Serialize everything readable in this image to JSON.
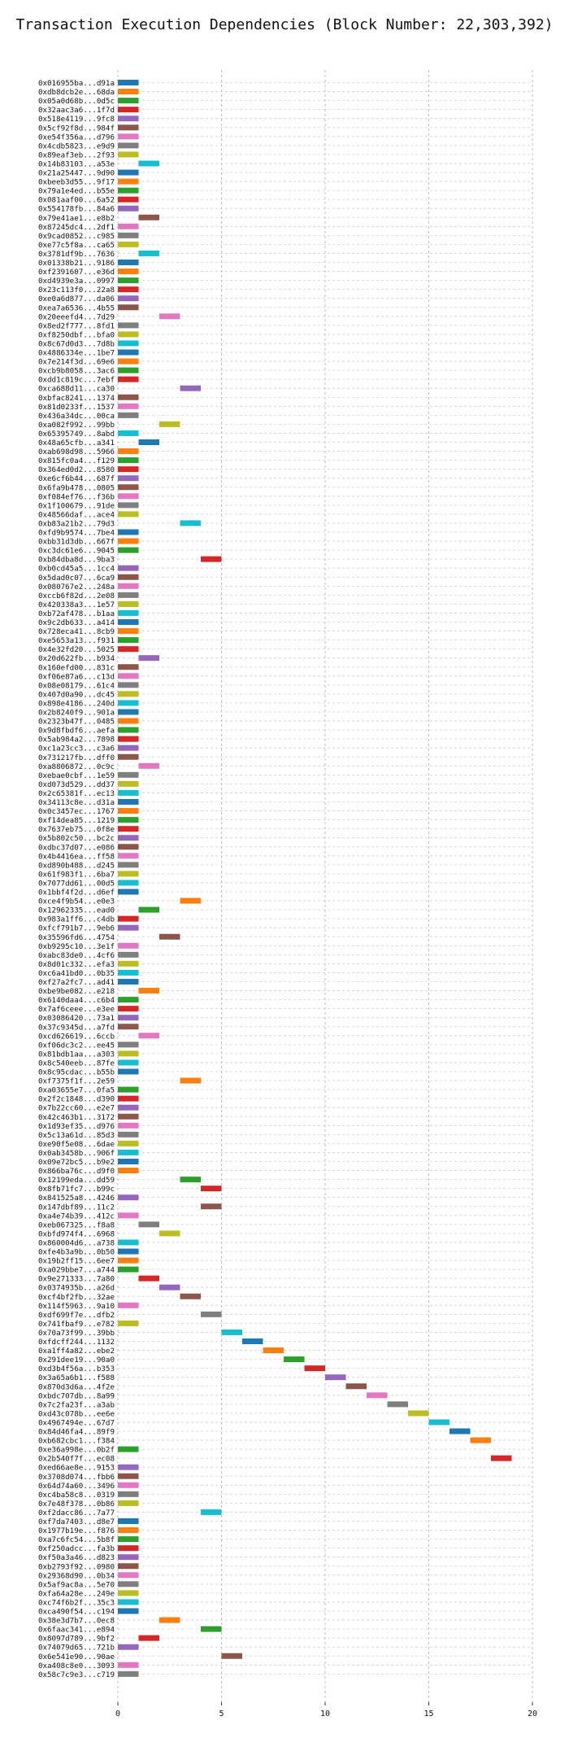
{
  "chart_data": {
    "type": "bar",
    "orientation": "horizontal-gantt",
    "title": "Transaction Execution Dependencies (Block Number: 22,303,392)",
    "xlabel": "",
    "ylabel": "",
    "xlim": [
      0,
      20
    ],
    "xticks": [
      0,
      5,
      10,
      15,
      20
    ],
    "grid": true,
    "bar_colors": [
      "#1f77b4",
      "#ff7f0e",
      "#2ca02c",
      "#d62728",
      "#9467bd",
      "#8c564b",
      "#e377c2",
      "#7f7f7f",
      "#bcbd22",
      "#17becf"
    ],
    "transactions": [
      {
        "label": "0x016955ba...d91a",
        "start": 0,
        "end": 1
      },
      {
        "label": "0xdb8dcb2e...68da",
        "start": 0,
        "end": 1
      },
      {
        "label": "0x05a0d68b...0d5c",
        "start": 0,
        "end": 1
      },
      {
        "label": "0x32aac3a6...1f7d",
        "start": 0,
        "end": 1
      },
      {
        "label": "0x518e4119...9fc8",
        "start": 0,
        "end": 1
      },
      {
        "label": "0x5cf92f8d...984f",
        "start": 0,
        "end": 1
      },
      {
        "label": "0xe54f356a...d796",
        "start": 0,
        "end": 1
      },
      {
        "label": "0x4cdb5823...e9d9",
        "start": 0,
        "end": 1
      },
      {
        "label": "0x89eaf3eb...2f93",
        "start": 0,
        "end": 1
      },
      {
        "label": "0x14b83103...a53e",
        "start": 1,
        "end": 2
      },
      {
        "label": "0x21a25447...9d90",
        "start": 0,
        "end": 1
      },
      {
        "label": "0xbeeb3d55...9f17",
        "start": 0,
        "end": 1
      },
      {
        "label": "0x79a1e4ed...b55e",
        "start": 0,
        "end": 1
      },
      {
        "label": "0x081aaf00...6a52",
        "start": 0,
        "end": 1
      },
      {
        "label": "0x554178fb...84a6",
        "start": 0,
        "end": 1
      },
      {
        "label": "0x79e41ae1...e8b2",
        "start": 1,
        "end": 2
      },
      {
        "label": "0x87245dc4...2df1",
        "start": 0,
        "end": 1
      },
      {
        "label": "0x9cad0852...c985",
        "start": 0,
        "end": 1
      },
      {
        "label": "0xe77c5f8a...ca65",
        "start": 0,
        "end": 1
      },
      {
        "label": "0x3781df9b...7636",
        "start": 1,
        "end": 2
      },
      {
        "label": "0x01338b21...9186",
        "start": 0,
        "end": 1
      },
      {
        "label": "0xf2391607...e36d",
        "start": 0,
        "end": 1
      },
      {
        "label": "0xd4939e3a...0997",
        "start": 0,
        "end": 1
      },
      {
        "label": "0x23c113f0...22a8",
        "start": 0,
        "end": 1
      },
      {
        "label": "0xe0a6d877...da06",
        "start": 0,
        "end": 1
      },
      {
        "label": "0xea7a6536...4b55",
        "start": 0,
        "end": 1
      },
      {
        "label": "0x20eeefd4...7d29",
        "start": 2,
        "end": 3
      },
      {
        "label": "0x8ed2f777...8fd1",
        "start": 0,
        "end": 1
      },
      {
        "label": "0xf8250dbf...bfa0",
        "start": 0,
        "end": 1
      },
      {
        "label": "0x8c67d0d3...7d8b",
        "start": 0,
        "end": 1
      },
      {
        "label": "0x4886334e...1be7",
        "start": 0,
        "end": 1
      },
      {
        "label": "0x7e214f3d...69e6",
        "start": 0,
        "end": 1
      },
      {
        "label": "0xcb9b8058...3ac6",
        "start": 0,
        "end": 1
      },
      {
        "label": "0xdd1c819c...7ebf",
        "start": 0,
        "end": 1
      },
      {
        "label": "0xca688d11...ca30",
        "start": 3,
        "end": 4
      },
      {
        "label": "0xbfac8241...1374",
        "start": 0,
        "end": 1
      },
      {
        "label": "0x81d0233f...1537",
        "start": 0,
        "end": 1
      },
      {
        "label": "0x436a34dc...00ca",
        "start": 0,
        "end": 1
      },
      {
        "label": "0xa082f992...99bb",
        "start": 2,
        "end": 3
      },
      {
        "label": "0x65395749...8abd",
        "start": 0,
        "end": 1
      },
      {
        "label": "0x48a65cfb...a341",
        "start": 1,
        "end": 2
      },
      {
        "label": "0xab698d98...5966",
        "start": 0,
        "end": 1
      },
      {
        "label": "0x815fc0a4...f129",
        "start": 0,
        "end": 1
      },
      {
        "label": "0x364ed0d2...8580",
        "start": 0,
        "end": 1
      },
      {
        "label": "0xe6cf6b44...687f",
        "start": 0,
        "end": 1
      },
      {
        "label": "0x6fa9b478...0805",
        "start": 0,
        "end": 1
      },
      {
        "label": "0xf084ef76...f36b",
        "start": 0,
        "end": 1
      },
      {
        "label": "0x1f100679...91de",
        "start": 0,
        "end": 1
      },
      {
        "label": "0x48566daf...ace4",
        "start": 0,
        "end": 1
      },
      {
        "label": "0xb83a21b2...79d3",
        "start": 3,
        "end": 4
      },
      {
        "label": "0xfd9b9574...7be4",
        "start": 0,
        "end": 1
      },
      {
        "label": "0xbb31d3db...667f",
        "start": 0,
        "end": 1
      },
      {
        "label": "0xc3dc61e6...9045",
        "start": 0,
        "end": 1
      },
      {
        "label": "0xb84dba8d...9ba3",
        "start": 4,
        "end": 5
      },
      {
        "label": "0xb0cd45a5...1cc4",
        "start": 0,
        "end": 1
      },
      {
        "label": "0x5dad0c07...6ca9",
        "start": 0,
        "end": 1
      },
      {
        "label": "0x080767e2...248a",
        "start": 0,
        "end": 1
      },
      {
        "label": "0xccb6f82d...2e08",
        "start": 0,
        "end": 1
      },
      {
        "label": "0x420338a3...1e57",
        "start": 0,
        "end": 1
      },
      {
        "label": "0xb72af478...b1aa",
        "start": 0,
        "end": 1
      },
      {
        "label": "0x9c2db633...a414",
        "start": 0,
        "end": 1
      },
      {
        "label": "0x728eca41...8cb9",
        "start": 0,
        "end": 1
      },
      {
        "label": "0xe5653a13...f931",
        "start": 0,
        "end": 1
      },
      {
        "label": "0x4e32fd20...5025",
        "start": 0,
        "end": 1
      },
      {
        "label": "0x20d622fb...b934",
        "start": 1,
        "end": 2
      },
      {
        "label": "0x160efd00...831c",
        "start": 0,
        "end": 1
      },
      {
        "label": "0xf06e87a6...c13d",
        "start": 0,
        "end": 1
      },
      {
        "label": "0x08e08179...61c4",
        "start": 0,
        "end": 1
      },
      {
        "label": "0x407d0a90...dc45",
        "start": 0,
        "end": 1
      },
      {
        "label": "0x898e4186...240d",
        "start": 0,
        "end": 1
      },
      {
        "label": "0x2b8240f9...901a",
        "start": 0,
        "end": 1
      },
      {
        "label": "0x2323b47f...0485",
        "start": 0,
        "end": 1
      },
      {
        "label": "0x9d8fbdf6...aefa",
        "start": 0,
        "end": 1
      },
      {
        "label": "0x5ab984a2...7898",
        "start": 0,
        "end": 1
      },
      {
        "label": "0xc1a23cc3...c3a6",
        "start": 0,
        "end": 1
      },
      {
        "label": "0x731217fb...dff0",
        "start": 0,
        "end": 1
      },
      {
        "label": "0xa8806872...0c9c",
        "start": 1,
        "end": 2
      },
      {
        "label": "0xebae0cbf...1e59",
        "start": 0,
        "end": 1
      },
      {
        "label": "0xd073d529...dd37",
        "start": 0,
        "end": 1
      },
      {
        "label": "0x2c65381f...ec13",
        "start": 0,
        "end": 1
      },
      {
        "label": "0x34113c8e...d31a",
        "start": 0,
        "end": 1
      },
      {
        "label": "0x0c3457ec...1767",
        "start": 0,
        "end": 1
      },
      {
        "label": "0xf14dea85...1219",
        "start": 0,
        "end": 1
      },
      {
        "label": "0x7637eb75...0f8e",
        "start": 0,
        "end": 1
      },
      {
        "label": "0x5b802c50...bc2c",
        "start": 0,
        "end": 1
      },
      {
        "label": "0xdbc37d07...e086",
        "start": 0,
        "end": 1
      },
      {
        "label": "0x4b4416ea...ff58",
        "start": 0,
        "end": 1
      },
      {
        "label": "0xd890b488...d245",
        "start": 0,
        "end": 1
      },
      {
        "label": "0x61f983f1...6ba7",
        "start": 0,
        "end": 1
      },
      {
        "label": "0x7077dd61...00d5",
        "start": 0,
        "end": 1
      },
      {
        "label": "0x1bbf4f2d...d6ef",
        "start": 0,
        "end": 1
      },
      {
        "label": "0xce4f9b54...e0e3",
        "start": 3,
        "end": 4
      },
      {
        "label": "0x12962335...ead0",
        "start": 1,
        "end": 2
      },
      {
        "label": "0x983a1ff6...c4db",
        "start": 0,
        "end": 1
      },
      {
        "label": "0xfcf791b7...9eb6",
        "start": 0,
        "end": 1
      },
      {
        "label": "0x35596fd6...4754",
        "start": 2,
        "end": 3
      },
      {
        "label": "0xb9295c10...3e1f",
        "start": 0,
        "end": 1
      },
      {
        "label": "0xabc83de0...4cf6",
        "start": 0,
        "end": 1
      },
      {
        "label": "0x8d01c332...efa3",
        "start": 0,
        "end": 1
      },
      {
        "label": "0xc6a41bd0...0b35",
        "start": 0,
        "end": 1
      },
      {
        "label": "0xf27a2fc7...ad41",
        "start": 0,
        "end": 1
      },
      {
        "label": "0xbe9be082...e218",
        "start": 1,
        "end": 2
      },
      {
        "label": "0x6140daa4...c6b4",
        "start": 0,
        "end": 1
      },
      {
        "label": "0x7af6ceee...e3ee",
        "start": 0,
        "end": 1
      },
      {
        "label": "0x03086420...73a1",
        "start": 0,
        "end": 1
      },
      {
        "label": "0x37c9345d...a7fd",
        "start": 0,
        "end": 1
      },
      {
        "label": "0xcd626619...6ccb",
        "start": 1,
        "end": 2
      },
      {
        "label": "0xf06dc3c2...ee45",
        "start": 0,
        "end": 1
      },
      {
        "label": "0x81bdb1aa...a303",
        "start": 0,
        "end": 1
      },
      {
        "label": "0x8c540eeb...87fe",
        "start": 0,
        "end": 1
      },
      {
        "label": "0x8c95cdac...b55b",
        "start": 0,
        "end": 1
      },
      {
        "label": "0xf7375f1f...2e59",
        "start": 3,
        "end": 4
      },
      {
        "label": "0xa03655e7...0fa5",
        "start": 0,
        "end": 1
      },
      {
        "label": "0x2f2c1848...d390",
        "start": 0,
        "end": 1
      },
      {
        "label": "0x7b22cc60...e2e7",
        "start": 0,
        "end": 1
      },
      {
        "label": "0x42c463b1...3172",
        "start": 0,
        "end": 1
      },
      {
        "label": "0x1d93ef35...d976",
        "start": 0,
        "end": 1
      },
      {
        "label": "0x5c13a61d...85d3",
        "start": 0,
        "end": 1
      },
      {
        "label": "0xe90f5e08...6dae",
        "start": 0,
        "end": 1
      },
      {
        "label": "0x0ab3458b...906f",
        "start": 0,
        "end": 1
      },
      {
        "label": "0x09e72bc5...b9e2",
        "start": 0,
        "end": 1
      },
      {
        "label": "0x866ba76c...d9f0",
        "start": 0,
        "end": 1
      },
      {
        "label": "0x12199eda...dd59",
        "start": 3,
        "end": 4
      },
      {
        "label": "0x8fb71fc7...b99c",
        "start": 4,
        "end": 5
      },
      {
        "label": "0x841525a8...4246",
        "start": 0,
        "end": 1
      },
      {
        "label": "0x147dbf89...11c2",
        "start": 4,
        "end": 5
      },
      {
        "label": "0xa4e74b39...412c",
        "start": 0,
        "end": 1
      },
      {
        "label": "0xeb067325...f8a8",
        "start": 1,
        "end": 2
      },
      {
        "label": "0xbfd974f4...6968",
        "start": 2,
        "end": 3
      },
      {
        "label": "0x860004d6...a738",
        "start": 0,
        "end": 1
      },
      {
        "label": "0xfe4b3a9b...0b50",
        "start": 0,
        "end": 1
      },
      {
        "label": "0x19b2ff15...6ee7",
        "start": 0,
        "end": 1
      },
      {
        "label": "0xa029bbe7...a744",
        "start": 0,
        "end": 1
      },
      {
        "label": "0x9e271333...7a80",
        "start": 1,
        "end": 2
      },
      {
        "label": "0x0374935b...a26d",
        "start": 2,
        "end": 3
      },
      {
        "label": "0xcf4bf2fb...32ae",
        "start": 3,
        "end": 4
      },
      {
        "label": "0x114f5963...9a10",
        "start": 0,
        "end": 1
      },
      {
        "label": "0xdf699f7e...dfb2",
        "start": 4,
        "end": 5
      },
      {
        "label": "0x741fbaf9...e782",
        "start": 0,
        "end": 1
      },
      {
        "label": "0x70a73f99...39bb",
        "start": 5,
        "end": 6
      },
      {
        "label": "0xfdcff244...1132",
        "start": 6,
        "end": 7
      },
      {
        "label": "0xa1ff4a82...ebe2",
        "start": 7,
        "end": 8
      },
      {
        "label": "0x291dee19...90a0",
        "start": 8,
        "end": 9
      },
      {
        "label": "0xd3b4f56a...b353",
        "start": 9,
        "end": 10
      },
      {
        "label": "0x3a65a6b1...f588",
        "start": 10,
        "end": 11
      },
      {
        "label": "0x870d3d6a...4f2e",
        "start": 11,
        "end": 12
      },
      {
        "label": "0xbdc707db...8a99",
        "start": 12,
        "end": 13
      },
      {
        "label": "0x7c2fa23f...a3ab",
        "start": 13,
        "end": 14
      },
      {
        "label": "0xd43c078b...ee6e",
        "start": 14,
        "end": 15
      },
      {
        "label": "0x4967494e...67d7",
        "start": 15,
        "end": 16
      },
      {
        "label": "0x84d46fa4...89f9",
        "start": 16,
        "end": 17
      },
      {
        "label": "0xb682cbc1...f384",
        "start": 17,
        "end": 18
      },
      {
        "label": "0xe36a998e...0b2f",
        "start": 0,
        "end": 1
      },
      {
        "label": "0x2b540f7f...ec08",
        "start": 18,
        "end": 19
      },
      {
        "label": "0xed66ae8e...9153",
        "start": 0,
        "end": 1
      },
      {
        "label": "0x3708d074...fbb6",
        "start": 0,
        "end": 1
      },
      {
        "label": "0x64d74a60...3496",
        "start": 0,
        "end": 1
      },
      {
        "label": "0xc4ba58c8...0319",
        "start": 0,
        "end": 1
      },
      {
        "label": "0x7e48f378...0b86",
        "start": 0,
        "end": 1
      },
      {
        "label": "0xf2dacc86...7a77",
        "start": 4,
        "end": 5
      },
      {
        "label": "0xf7da7403...d8e7",
        "start": 0,
        "end": 1
      },
      {
        "label": "0x1977b19e...f876",
        "start": 0,
        "end": 1
      },
      {
        "label": "0xa7c6fc54...5b8f",
        "start": 0,
        "end": 1
      },
      {
        "label": "0xf250adcc...fa3b",
        "start": 0,
        "end": 1
      },
      {
        "label": "0xf50a3a46...d823",
        "start": 0,
        "end": 1
      },
      {
        "label": "0xb2793f92...0980",
        "start": 0,
        "end": 1
      },
      {
        "label": "0x29368d90...0b34",
        "start": 0,
        "end": 1
      },
      {
        "label": "0x5af9ac8a...5e70",
        "start": 0,
        "end": 1
      },
      {
        "label": "0xfa64a28e...249e",
        "start": 0,
        "end": 1
      },
      {
        "label": "0xc74f6b2f...35c3",
        "start": 0,
        "end": 1
      },
      {
        "label": "0xca490f54...c194",
        "start": 0,
        "end": 1
      },
      {
        "label": "0x38e3d7b7...0ec8",
        "start": 2,
        "end": 3
      },
      {
        "label": "0x6faac341...e894",
        "start": 4,
        "end": 5
      },
      {
        "label": "0x8097d789...9bf2",
        "start": 1,
        "end": 2
      },
      {
        "label": "0x74079d65...721b",
        "start": 0,
        "end": 1
      },
      {
        "label": "0x6e541e90...90ae",
        "start": 5,
        "end": 6
      },
      {
        "label": "0xa408c8e0...3093",
        "start": 0,
        "end": 1
      },
      {
        "label": "0x58c7c9e3...c719",
        "start": 0,
        "end": 1
      }
    ]
  }
}
